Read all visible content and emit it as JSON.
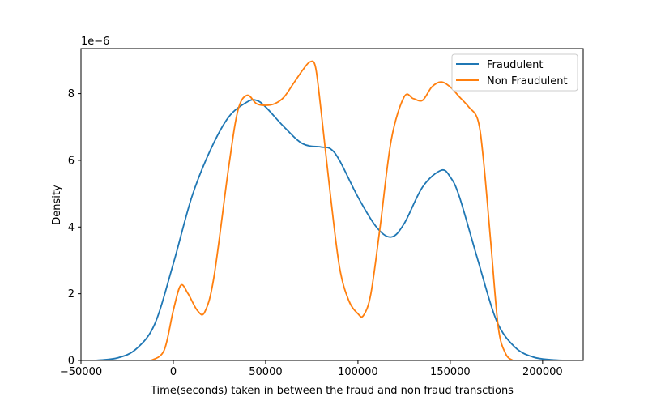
{
  "chart_data": {
    "type": "line",
    "title": "",
    "xlabel": "Time(seconds) taken in between the fraud and non fraud transctions",
    "ylabel": "Density",
    "y_offset_text": "1e−6",
    "xlim": [
      -50000,
      222000
    ],
    "ylim": [
      0,
      9.35
    ],
    "y_unit_multiplier": 1e-06,
    "grid": false,
    "legend_position": "top-right",
    "x_ticks": [
      -50000,
      0,
      50000,
      100000,
      150000,
      200000
    ],
    "x_tick_labels": [
      "−50000",
      "0",
      "50000",
      "100000",
      "150000",
      "200000"
    ],
    "y_ticks": [
      0,
      2,
      4,
      6,
      8
    ],
    "y_tick_labels": [
      "0",
      "2",
      "4",
      "6",
      "8"
    ],
    "series": [
      {
        "name": "Fraudulent",
        "color": "#1f77b4",
        "x": [
          -42000,
          -30000,
          -20000,
          -10000,
          0,
          10000,
          20000,
          30000,
          40000,
          45000,
          50000,
          60000,
          70000,
          80000,
          85000,
          90000,
          100000,
          110000,
          118000,
          125000,
          135000,
          145000,
          150000,
          155000,
          165000,
          175000,
          185000,
          195000,
          205000,
          212000
        ],
        "y": [
          0.0,
          0.08,
          0.35,
          1.1,
          2.9,
          4.9,
          6.3,
          7.3,
          7.75,
          7.8,
          7.6,
          7.0,
          6.5,
          6.4,
          6.35,
          6.0,
          4.9,
          4.0,
          3.7,
          4.1,
          5.2,
          5.7,
          5.5,
          4.9,
          3.0,
          1.2,
          0.4,
          0.1,
          0.02,
          0.0
        ]
      },
      {
        "name": "Non Fraudulent",
        "color": "#ff7f0e",
        "x": [
          -12000,
          -5000,
          0,
          4000,
          8000,
          13000,
          17000,
          22000,
          30000,
          35000,
          40000,
          45000,
          50000,
          55000,
          60000,
          65000,
          70000,
          74000,
          77000,
          80000,
          85000,
          90000,
          95000,
          100000,
          103000,
          107000,
          112000,
          118000,
          125000,
          130000,
          135000,
          140000,
          145000,
          150000,
          155000,
          160000,
          165000,
          168000,
          172000,
          176000,
          180000,
          184000
        ],
        "y": [
          0.0,
          0.3,
          1.5,
          2.25,
          2.0,
          1.5,
          1.45,
          2.5,
          5.8,
          7.5,
          7.95,
          7.7,
          7.65,
          7.7,
          7.9,
          8.3,
          8.7,
          8.95,
          8.8,
          7.5,
          5.0,
          2.8,
          1.8,
          1.4,
          1.35,
          2.0,
          4.0,
          6.6,
          7.9,
          7.85,
          7.8,
          8.2,
          8.35,
          8.2,
          7.9,
          7.6,
          7.2,
          6.0,
          3.5,
          1.0,
          0.2,
          0.0
        ]
      }
    ]
  }
}
